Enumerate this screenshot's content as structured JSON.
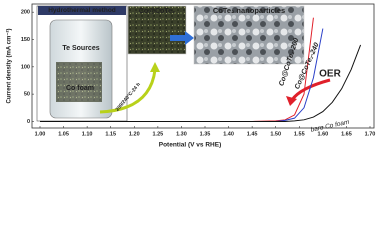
{
  "chart_data": {
    "type": "line",
    "xlabel": "Potential (V vs RHE)",
    "ylabel": "Current density (mA cm⁻²)",
    "x": [
      1.0,
      1.1,
      1.2,
      1.3,
      1.4,
      1.45,
      1.5,
      1.52,
      1.54,
      1.56,
      1.58,
      1.6,
      1.62,
      1.64,
      1.66,
      1.68
    ],
    "series": [
      {
        "name": "Co@CoTe₂-200",
        "color": "#e0202a",
        "values": [
          0,
          0,
          0,
          0,
          0,
          0,
          1,
          3,
          12,
          50,
          190,
          null,
          null,
          null,
          null,
          null
        ]
      },
      {
        "name": "Co@CoTe₂-240",
        "color": "#2a3fc8",
        "values": [
          0,
          0,
          0,
          0,
          0,
          0,
          0,
          2,
          6,
          25,
          80,
          170,
          null,
          null,
          null,
          null
        ]
      },
      {
        "name": "bare Co foam",
        "color": "#111111",
        "values": [
          0,
          0,
          0,
          0,
          0,
          0,
          0,
          0,
          1,
          3,
          8,
          18,
          35,
          60,
          95,
          140
        ]
      }
    ],
    "xlim": [
      1.0,
      1.7
    ],
    "xticks": [
      {
        "value": 1.0,
        "label": "1.00"
      },
      {
        "value": 1.05,
        "label": "1.05"
      },
      {
        "value": 1.1,
        "label": "1.10"
      },
      {
        "value": 1.15,
        "label": "1.15"
      },
      {
        "value": 1.2,
        "label": "1.20"
      },
      {
        "value": 1.25,
        "label": "1.25"
      },
      {
        "value": 1.3,
        "label": "1.30"
      },
      {
        "value": 1.35,
        "label": "1.35"
      },
      {
        "value": 1.4,
        "label": "1.40"
      },
      {
        "value": 1.45,
        "label": "1.45"
      },
      {
        "value": 1.5,
        "label": "1.50"
      },
      {
        "value": 1.55,
        "label": "1.55"
      },
      {
        "value": 1.6,
        "label": "1.60"
      },
      {
        "value": 1.65,
        "label": "1.65"
      },
      {
        "value": 1.7,
        "label": "1.70"
      }
    ],
    "ylim": [
      -12,
      215
    ],
    "yticks": [
      0,
      50,
      100,
      150,
      200
    ],
    "annotations": [
      "Hydrothermal method",
      "Co@CoTe₂",
      "CoTe₂ nanoparticles",
      "Te Sources",
      "Co foam",
      "200/240°C-24 h",
      "OER"
    ]
  }
}
